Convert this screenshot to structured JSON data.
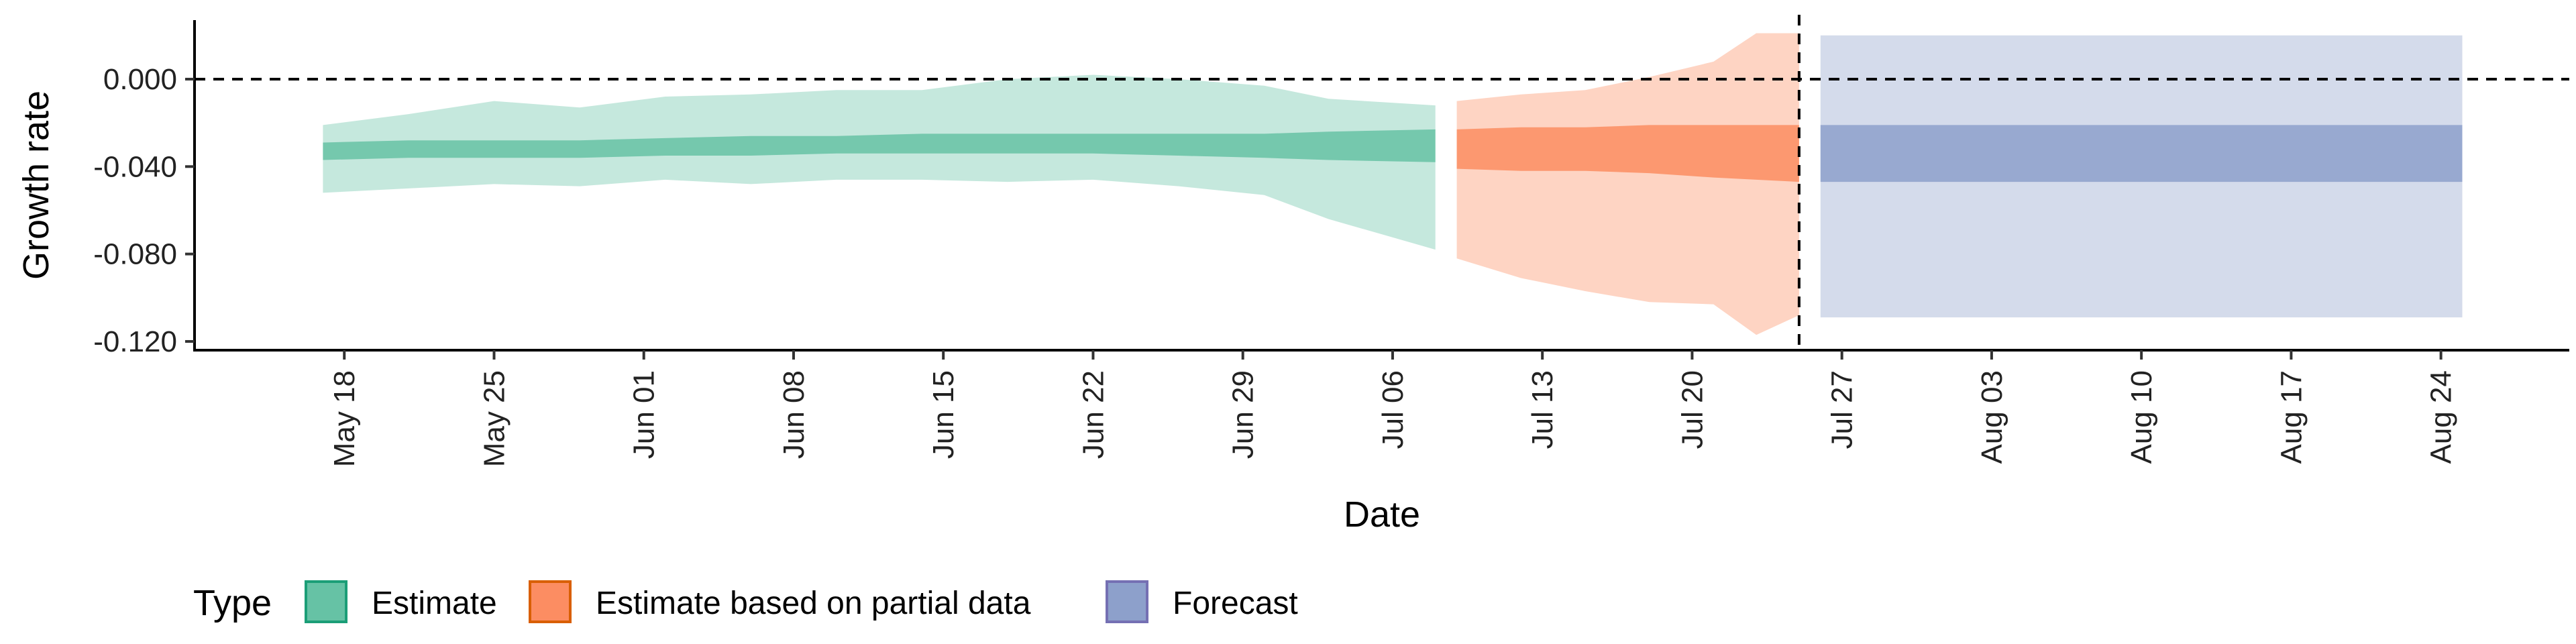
{
  "chart_data": {
    "type": "area",
    "xlabel": "Date",
    "ylabel": "Growth rate",
    "ylim": [
      -0.124,
      0.027
    ],
    "xlim": [
      "2020-05-11",
      "2020-08-30"
    ],
    "y_ticks": [
      {
        "value": 0.0,
        "label": "0.000"
      },
      {
        "value": -0.04,
        "label": "-0.040"
      },
      {
        "value": -0.08,
        "label": "-0.080"
      },
      {
        "value": -0.12,
        "label": "-0.120"
      }
    ],
    "x_ticks": [
      {
        "date": "2020-05-18",
        "label": "May 18"
      },
      {
        "date": "2020-05-25",
        "label": "May 25"
      },
      {
        "date": "2020-06-01",
        "label": "Jun 01"
      },
      {
        "date": "2020-06-08",
        "label": "Jun 08"
      },
      {
        "date": "2020-06-15",
        "label": "Jun 15"
      },
      {
        "date": "2020-06-22",
        "label": "Jun 22"
      },
      {
        "date": "2020-06-29",
        "label": "Jun 29"
      },
      {
        "date": "2020-07-06",
        "label": "Jul 06"
      },
      {
        "date": "2020-07-13",
        "label": "Jul 13"
      },
      {
        "date": "2020-07-20",
        "label": "Jul 20"
      },
      {
        "date": "2020-07-27",
        "label": "Jul 27"
      },
      {
        "date": "2020-08-03",
        "label": "Aug 03"
      },
      {
        "date": "2020-08-10",
        "label": "Aug 10"
      },
      {
        "date": "2020-08-17",
        "label": "Aug 17"
      },
      {
        "date": "2020-08-24",
        "label": "Aug 24"
      }
    ],
    "reference_lines": [
      {
        "axis": "y",
        "value": 0.0,
        "style": "dashed"
      },
      {
        "axis": "x",
        "date": "2020-07-25",
        "style": "dashed"
      }
    ],
    "series": [
      {
        "name": "Estimate",
        "fill": "#66c2a5",
        "points": [
          {
            "date": "2020-05-17",
            "lower90": -0.052,
            "lower50": -0.037,
            "upper50": -0.029,
            "upper90": -0.021
          },
          {
            "date": "2020-05-21",
            "lower90": -0.05,
            "lower50": -0.036,
            "upper50": -0.028,
            "upper90": -0.016
          },
          {
            "date": "2020-05-25",
            "lower90": -0.048,
            "lower50": -0.036,
            "upper50": -0.028,
            "upper90": -0.01
          },
          {
            "date": "2020-05-29",
            "lower90": -0.049,
            "lower50": -0.036,
            "upper50": -0.028,
            "upper90": -0.013
          },
          {
            "date": "2020-06-02",
            "lower90": -0.046,
            "lower50": -0.035,
            "upper50": -0.027,
            "upper90": -0.008
          },
          {
            "date": "2020-06-06",
            "lower90": -0.048,
            "lower50": -0.035,
            "upper50": -0.026,
            "upper90": -0.007
          },
          {
            "date": "2020-06-10",
            "lower90": -0.046,
            "lower50": -0.034,
            "upper50": -0.026,
            "upper90": -0.005
          },
          {
            "date": "2020-06-14",
            "lower90": -0.046,
            "lower50": -0.034,
            "upper50": -0.025,
            "upper90": -0.005
          },
          {
            "date": "2020-06-18",
            "lower90": -0.047,
            "lower50": -0.034,
            "upper50": -0.025,
            "upper90": 0.0
          },
          {
            "date": "2020-06-22",
            "lower90": -0.046,
            "lower50": -0.034,
            "upper50": -0.025,
            "upper90": 0.002
          },
          {
            "date": "2020-06-26",
            "lower90": -0.049,
            "lower50": -0.035,
            "upper50": -0.025,
            "upper90": 0.0
          },
          {
            "date": "2020-06-30",
            "lower90": -0.053,
            "lower50": -0.036,
            "upper50": -0.025,
            "upper90": -0.003
          },
          {
            "date": "2020-07-03",
            "lower90": -0.064,
            "lower50": -0.037,
            "upper50": -0.024,
            "upper90": -0.009
          },
          {
            "date": "2020-07-08",
            "lower90": -0.078,
            "lower50": -0.038,
            "upper50": -0.023,
            "upper90": -0.012
          }
        ]
      },
      {
        "name": "Estimate based on partial data",
        "fill": "#fc8d62",
        "points": [
          {
            "date": "2020-07-09",
            "lower90": -0.082,
            "lower50": -0.041,
            "upper50": -0.023,
            "upper90": -0.01
          },
          {
            "date": "2020-07-12",
            "lower90": -0.091,
            "lower50": -0.042,
            "upper50": -0.022,
            "upper90": -0.007
          },
          {
            "date": "2020-07-15",
            "lower90": -0.097,
            "lower50": -0.042,
            "upper50": -0.022,
            "upper90": -0.005
          },
          {
            "date": "2020-07-18",
            "lower90": -0.102,
            "lower50": -0.043,
            "upper50": -0.021,
            "upper90": 0.001
          },
          {
            "date": "2020-07-21",
            "lower90": -0.103,
            "lower50": -0.045,
            "upper50": -0.021,
            "upper90": 0.008
          },
          {
            "date": "2020-07-23",
            "lower90": -0.117,
            "lower50": -0.046,
            "upper50": -0.021,
            "upper90": 0.021
          },
          {
            "date": "2020-07-25",
            "lower90": -0.108,
            "lower50": -0.047,
            "upper50": -0.021,
            "upper90": 0.021
          }
        ]
      },
      {
        "name": "Forecast",
        "fill": "#8da0cb",
        "points": [
          {
            "date": "2020-07-26",
            "lower90": -0.109,
            "lower50": -0.047,
            "upper50": -0.021,
            "upper90": 0.02
          },
          {
            "date": "2020-08-25",
            "lower90": -0.109,
            "lower50": -0.047,
            "upper50": -0.021,
            "upper90": 0.02
          }
        ]
      }
    ],
    "legend": {
      "title": "Type",
      "placement": "bottom-left",
      "items": [
        {
          "label": "Estimate",
          "fill": "#66c2a5",
          "stroke": "#1b9e77"
        },
        {
          "label": "Estimate based on partial data",
          "fill": "#fc8d62",
          "stroke": "#d95f02"
        },
        {
          "label": "Forecast",
          "fill": "#8da0cb",
          "stroke": "#7570b3"
        }
      ]
    }
  }
}
